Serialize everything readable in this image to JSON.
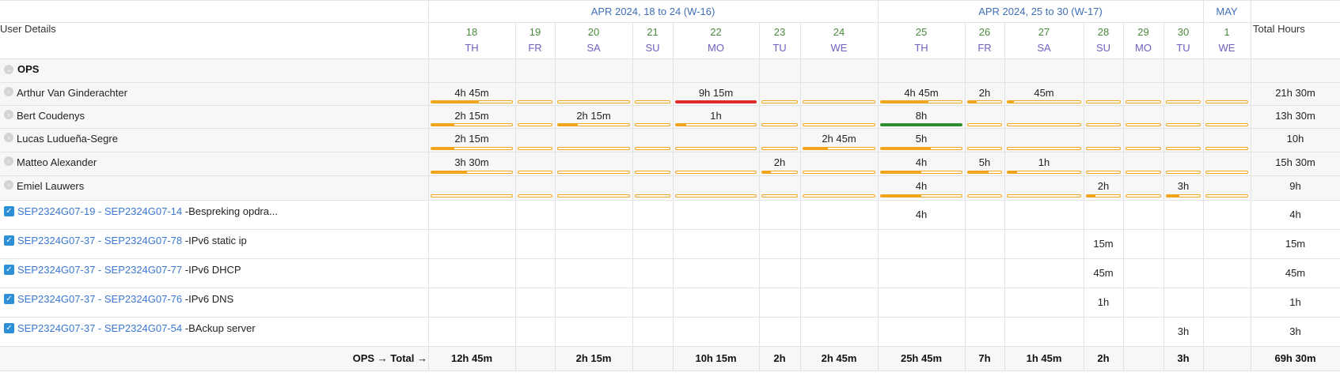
{
  "header": {
    "user_details": "User Details",
    "total_hours": "Total Hours",
    "weeks": [
      {
        "label": "APR 2024, 18 to 24 (W-16)"
      },
      {
        "label": "APR 2024, 25 to 30 (W-17)"
      },
      {
        "label": "MAY"
      }
    ],
    "days": [
      {
        "num": "18",
        "wd": "TH"
      },
      {
        "num": "19",
        "wd": "FR"
      },
      {
        "num": "20",
        "wd": "SA"
      },
      {
        "num": "21",
        "wd": "SU"
      },
      {
        "num": "22",
        "wd": "MO"
      },
      {
        "num": "23",
        "wd": "TU"
      },
      {
        "num": "24",
        "wd": "WE"
      },
      {
        "num": "25",
        "wd": "TH"
      },
      {
        "num": "26",
        "wd": "FR"
      },
      {
        "num": "27",
        "wd": "SA"
      },
      {
        "num": "28",
        "wd": "SU"
      },
      {
        "num": "29",
        "wd": "MO"
      },
      {
        "num": "30",
        "wd": "TU"
      },
      {
        "num": "1",
        "wd": "WE"
      }
    ]
  },
  "group": {
    "name": "OPS"
  },
  "users": [
    {
      "name": "Arthur Van Ginderachter",
      "total": "21h 30m",
      "cells": [
        "4h 45m",
        "",
        "",
        "",
        "9h 15m",
        "",
        "",
        "4h 45m",
        "2h",
        "45m",
        "",
        "",
        "",
        ""
      ],
      "fill": [
        0.59,
        0,
        0,
        0,
        1,
        0,
        0,
        0.59,
        0.25,
        0.09,
        0,
        0,
        0,
        0
      ],
      "color": [
        "orange",
        "orange",
        "orange",
        "orange",
        "red",
        "orange",
        "orange",
        "orange",
        "orange",
        "orange",
        "orange",
        "orange",
        "orange",
        "orange"
      ]
    },
    {
      "name": "Bert Coudenys",
      "total": "13h 30m",
      "cells": [
        "2h 15m",
        "",
        "2h 15m",
        "",
        "1h",
        "",
        "",
        "8h",
        "",
        "",
        "",
        "",
        "",
        ""
      ],
      "fill": [
        0.28,
        0,
        0.28,
        0,
        0.13,
        0,
        0,
        1,
        0,
        0,
        0,
        0,
        0,
        0
      ],
      "color": [
        "orange",
        "orange",
        "orange",
        "orange",
        "orange",
        "orange",
        "orange",
        "green",
        "orange",
        "orange",
        "orange",
        "orange",
        "orange",
        "orange"
      ]
    },
    {
      "name": "Lucas Ludueña-Segre",
      "total": "10h",
      "cells": [
        "2h 15m",
        "",
        "",
        "",
        "",
        "",
        "2h 45m",
        "5h",
        "",
        "",
        "",
        "",
        "",
        ""
      ],
      "fill": [
        0.28,
        0,
        0,
        0,
        0,
        0,
        0.34,
        0.62,
        0,
        0,
        0,
        0,
        0,
        0
      ],
      "color": [
        "orange",
        "orange",
        "orange",
        "orange",
        "orange",
        "orange",
        "orange",
        "orange",
        "orange",
        "orange",
        "orange",
        "orange",
        "orange",
        "orange"
      ]
    },
    {
      "name": "Matteo Alexander",
      "total": "15h 30m",
      "cells": [
        "3h 30m",
        "",
        "",
        "",
        "",
        "2h",
        "",
        "4h",
        "5h",
        "1h",
        "",
        "",
        "",
        ""
      ],
      "fill": [
        0.44,
        0,
        0,
        0,
        0,
        0.25,
        0,
        0.5,
        0.62,
        0.13,
        0,
        0,
        0,
        0
      ],
      "color": [
        "orange",
        "orange",
        "orange",
        "orange",
        "orange",
        "orange",
        "orange",
        "orange",
        "orange",
        "orange",
        "orange",
        "orange",
        "orange",
        "orange"
      ]
    },
    {
      "name": "Emiel Lauwers",
      "total": "9h",
      "cells": [
        "",
        "",
        "",
        "",
        "",
        "",
        "",
        "4h",
        "",
        "",
        "2h",
        "",
        "3h",
        ""
      ],
      "fill": [
        0,
        0,
        0,
        0,
        0,
        0,
        0,
        0.5,
        0,
        0,
        0.25,
        0,
        0.37,
        0
      ],
      "color": [
        "orange",
        "orange",
        "orange",
        "orange",
        "orange",
        "orange",
        "orange",
        "orange",
        "orange",
        "orange",
        "orange",
        "orange",
        "orange",
        "orange"
      ]
    }
  ],
  "tasks": [
    {
      "link": "SEP2324G07-19 - SEP2324G07-14",
      "desc": " -Bespreking opdra...",
      "total": "4h",
      "cells": [
        "",
        "",
        "",
        "",
        "",
        "",
        "",
        "4h",
        "",
        "",
        "",
        "",
        "",
        ""
      ]
    },
    {
      "link": "SEP2324G07-37 - SEP2324G07-78",
      "desc": " -IPv6 static ip",
      "total": "15m",
      "cells": [
        "",
        "",
        "",
        "",
        "",
        "",
        "",
        "",
        "",
        "",
        "15m",
        "",
        "",
        ""
      ]
    },
    {
      "link": "SEP2324G07-37 - SEP2324G07-77",
      "desc": " -IPv6 DHCP",
      "total": "45m",
      "cells": [
        "",
        "",
        "",
        "",
        "",
        "",
        "",
        "",
        "",
        "",
        "45m",
        "",
        "",
        ""
      ]
    },
    {
      "link": "SEP2324G07-37 - SEP2324G07-76",
      "desc": " -IPv6 DNS",
      "total": "1h",
      "cells": [
        "",
        "",
        "",
        "",
        "",
        "",
        "",
        "",
        "",
        "",
        "1h",
        "",
        "",
        ""
      ]
    },
    {
      "link": "SEP2324G07-37 - SEP2324G07-54",
      "desc": " -BAckup server",
      "total": "3h",
      "cells": [
        "",
        "",
        "",
        "",
        "",
        "",
        "",
        "",
        "",
        "",
        "",
        "",
        "3h",
        ""
      ]
    }
  ],
  "totals": {
    "label": "OPS → Total →",
    "cells": [
      "12h 45m",
      "",
      "2h 15m",
      "",
      "10h 15m",
      "2h",
      "2h 45m",
      "25h 45m",
      "7h",
      "1h 45m",
      "2h",
      "",
      "3h",
      ""
    ],
    "grand": "69h 30m"
  },
  "colors": {
    "orange": "#f0a51c",
    "red": "#e12b2b",
    "green": "#2e8b2e",
    "link": "#3a78d4",
    "week": "#3f6fb5"
  }
}
